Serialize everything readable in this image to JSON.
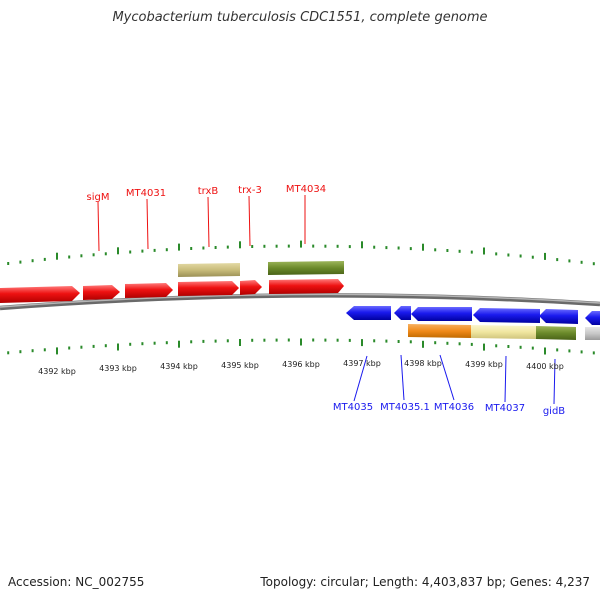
{
  "title": "Mycobacterium tuberculosis CDC1551, complete genome",
  "footer": {
    "accession": "Accession: NC_002755",
    "summary": "Topology: circular; Length: 4,403,837 bp; Genes: 4,237"
  },
  "colors": {
    "forward": "#ee1111",
    "reverse": "#1a1aee",
    "tick": "#2a8a2a",
    "backbone": "#888888",
    "orange": "#f08a1a",
    "pale_yellow": "#f0e6a0",
    "olive": "#6b8a2a",
    "khaki": "#c8bc7a",
    "grey": "#c8c8c8"
  },
  "scale_labels": [
    "4392 kbp",
    "4393 kbp",
    "4394 kbp",
    "4395 kbp",
    "4396 kbp",
    "4397 kbp",
    "4398 kbp",
    "4399 kbp",
    "4400 kbp"
  ],
  "forward_genes": [
    "sigM",
    "MT4031",
    "trxB",
    "trx-3",
    "MT4034"
  ],
  "reverse_genes": [
    "MT4035",
    "MT4035.1",
    "MT4036",
    "MT4037",
    "gidB"
  ]
}
